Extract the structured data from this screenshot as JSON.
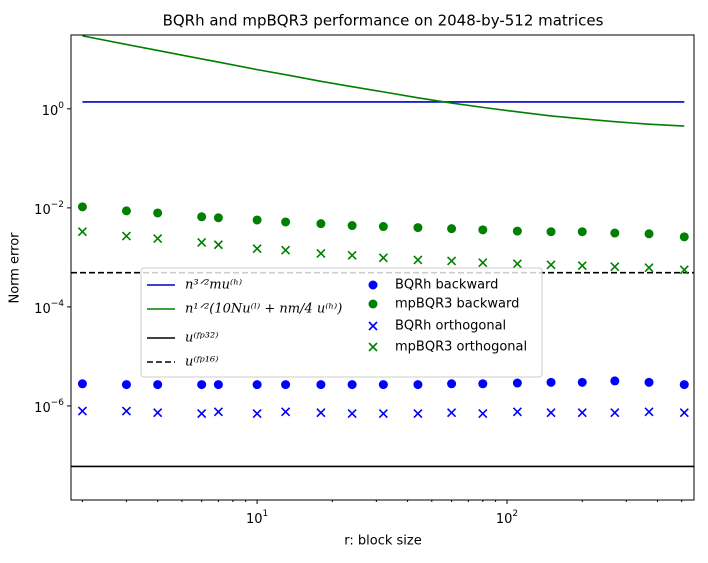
{
  "chart_data": {
    "type": "line-scatter",
    "title": "BQRh and mpBQR3 performance on 2048-by-512 matrices",
    "xlabel": "r: block size",
    "ylabel": "Norm error",
    "xscale": "log",
    "yscale": "log",
    "xlim": [
      1.8,
      560
    ],
    "ylim": [
      1.26e-08,
      31
    ],
    "xticks": [
      {
        "value": 10,
        "label": "10",
        "exponent": "1"
      },
      {
        "value": 100,
        "label": "10",
        "exponent": "2"
      }
    ],
    "xminor_ticks": [
      2,
      3,
      4,
      5,
      6,
      7,
      8,
      9,
      20,
      30,
      40,
      50,
      60,
      70,
      80,
      90,
      200,
      300,
      400,
      500
    ],
    "yticks": [
      {
        "value": 1e-06,
        "label": "10",
        "exponent": "−6"
      },
      {
        "value": 0.0001,
        "label": "10",
        "exponent": "−4"
      },
      {
        "value": 0.01,
        "label": "10",
        "exponent": "−2"
      },
      {
        "value": 1,
        "label": "10",
        "exponent": "0"
      }
    ],
    "legend": {
      "position": "center-left",
      "columns": 2
    },
    "x": [
      2,
      3,
      4,
      6,
      7,
      10,
      13,
      18,
      24,
      32,
      44,
      60,
      80,
      110,
      150,
      200,
      270,
      370,
      512
    ],
    "series": [
      {
        "name": "n³ᐟ²mu⁽ʰ⁾",
        "kind": "line",
        "color": "#0000cc",
        "values": [
          1.38,
          1.38,
          1.38,
          1.38,
          1.38,
          1.38,
          1.38,
          1.38,
          1.38,
          1.38,
          1.38,
          1.38,
          1.38,
          1.38,
          1.38,
          1.38,
          1.38,
          1.38,
          1.38
        ]
      },
      {
        "name": "n¹ᐟ²(10Nu⁽ˡ⁾ + nm/4 u⁽ʰ⁾)",
        "kind": "line",
        "color": "#008000",
        "values": [
          29.8,
          20,
          15.1,
          10.2,
          8.8,
          6.2,
          4.9,
          3.6,
          2.8,
          2.2,
          1.67,
          1.31,
          1.07,
          0.87,
          0.72,
          0.63,
          0.55,
          0.49,
          0.45
        ]
      },
      {
        "name": "u⁽ᶠᵖ³²⁾",
        "kind": "hline",
        "color": "#000000",
        "dash": false,
        "value": 6e-08
      },
      {
        "name": "u⁽ᶠᵖ¹⁶⁾",
        "kind": "hline",
        "color": "#000000",
        "dash": true,
        "value": 0.00049
      },
      {
        "name": "BQRh backward",
        "kind": "scatter",
        "marker": "o",
        "color": "#0000ff",
        "values": [
          2.8e-06,
          2.7e-06,
          2.7e-06,
          2.7e-06,
          2.7e-06,
          2.7e-06,
          2.7e-06,
          2.7e-06,
          2.7e-06,
          2.7e-06,
          2.7e-06,
          2.8e-06,
          2.8e-06,
          2.9e-06,
          3e-06,
          3e-06,
          3.2e-06,
          3e-06,
          2.7e-06
        ]
      },
      {
        "name": "mpBQR3 backward",
        "kind": "scatter",
        "marker": "o",
        "color": "#008000",
        "values": [
          0.0105,
          0.0087,
          0.0079,
          0.0066,
          0.0063,
          0.0057,
          0.0052,
          0.0048,
          0.0044,
          0.0042,
          0.004,
          0.0038,
          0.0036,
          0.0034,
          0.0033,
          0.0033,
          0.0031,
          0.003,
          0.0026
        ]
      },
      {
        "name": "BQRh orthogonal",
        "kind": "scatter",
        "marker": "x",
        "color": "#0000ff",
        "values": [
          7.9e-07,
          7.9e-07,
          7.3e-07,
          7e-07,
          7.6e-07,
          7e-07,
          7.6e-07,
          7.3e-07,
          7e-07,
          7e-07,
          7e-07,
          7.3e-07,
          7e-07,
          7.6e-07,
          7.3e-07,
          7.3e-07,
          7.3e-07,
          7.6e-07,
          7.3e-07
        ]
      },
      {
        "name": "mpBQR3 orthogonal",
        "kind": "scatter",
        "marker": "x",
        "color": "#008000",
        "values": [
          0.0033,
          0.0027,
          0.0024,
          0.002,
          0.0018,
          0.0015,
          0.0014,
          0.0012,
          0.0011,
          0.00098,
          0.00089,
          0.00085,
          0.00078,
          0.00074,
          0.00071,
          0.00068,
          0.00065,
          0.00062,
          0.00056
        ]
      }
    ]
  }
}
